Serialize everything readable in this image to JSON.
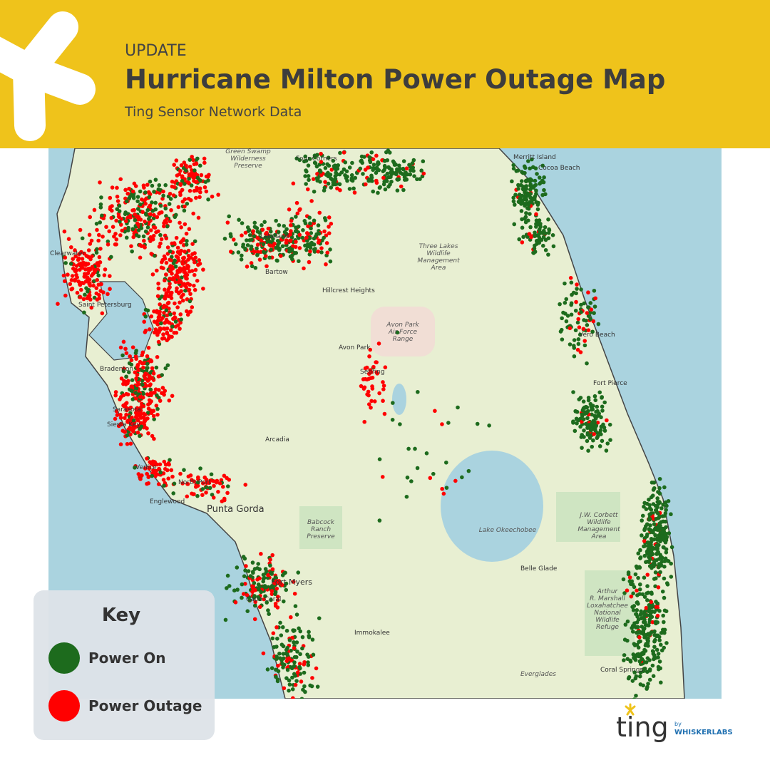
{
  "header": {
    "kicker": "UPDATE",
    "title": "Hurricane Milton Power Outage Map",
    "subtitle": "Ting Sensor Network Data"
  },
  "map": {
    "labels": [
      [
        "Green Swamp",
        "Wilderness",
        "Preserve"
      ],
      [
        "Four Corners"
      ],
      [
        "Merritt Island"
      ],
      [
        "Cocoa Beach"
      ],
      [
        "Clearwater"
      ],
      [
        "Saint Petersburg"
      ],
      [
        "Lakeland"
      ],
      [
        "Bartow"
      ],
      [
        "Hillcrest Heights"
      ],
      [
        "Three Lakes",
        "Wildlife",
        "Management",
        "Area"
      ],
      [
        "Avon Park",
        "Air Force",
        "Range"
      ],
      [
        "Avon Park"
      ],
      [
        "Sebring"
      ],
      [
        "Fort Pierce"
      ],
      [
        "Vero Beach"
      ],
      [
        "Arcadia"
      ],
      [
        "North Port"
      ],
      [
        "Englewood"
      ],
      [
        "Punta Gorda"
      ],
      [
        "Babcock",
        "Ranch",
        "Preserve"
      ],
      [
        "Lake Okeechobee"
      ],
      [
        "J.W. Corbett",
        "Wildlife",
        "Management",
        "Area"
      ],
      [
        "Fort Myers"
      ],
      [
        "Cape Coral"
      ],
      [
        "Immokalee"
      ],
      [
        "Belle Glade"
      ],
      [
        "Arthur",
        "R. Marshall",
        "Loxahatchee",
        "National",
        "Wildlife",
        "Refuge"
      ],
      [
        "Everglades"
      ],
      [
        "Coral Springs"
      ],
      [
        "Sarasota"
      ],
      [
        "Siesta Key"
      ],
      [
        "Venice"
      ],
      [
        "Bradenton"
      ]
    ]
  },
  "key": {
    "title": "Key",
    "items": [
      {
        "label": "Power On",
        "color": "#1d6b1d"
      },
      {
        "label": "Power Outage",
        "color": "#ff0000"
      }
    ]
  },
  "logo": {
    "name": "ting",
    "by": "by",
    "company": "WHISKERLABS"
  }
}
